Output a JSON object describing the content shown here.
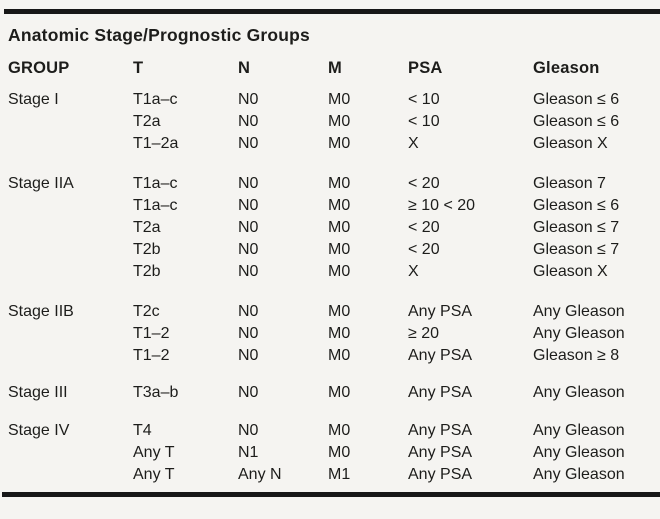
{
  "colors": {
    "background": "#f5f4f1",
    "rule": "#171717",
    "text": "#1d1d1b"
  },
  "table": {
    "title": "Anatomic Stage/Prognostic Groups",
    "headers": [
      "GROUP",
      "T",
      "N",
      "M",
      "PSA",
      "Gleason"
    ],
    "groups": [
      {
        "label": "Stage I",
        "rows": [
          {
            "t": "T1a–c",
            "n": "N0",
            "m": "M0",
            "psa": "< 10",
            "gleason": "Gleason ≤ 6"
          },
          {
            "t": "T2a",
            "n": "N0",
            "m": "M0",
            "psa": "< 10",
            "gleason": "Gleason ≤ 6"
          },
          {
            "t": "T1–2a",
            "n": "N0",
            "m": "M0",
            "psa": "X",
            "gleason": "Gleason X"
          }
        ]
      },
      {
        "label": "Stage IIA",
        "rows": [
          {
            "t": "T1a–c",
            "n": "N0",
            "m": "M0",
            "psa": "< 20",
            "gleason": "Gleason 7"
          },
          {
            "t": "T1a–c",
            "n": "N0",
            "m": "M0",
            "psa": "≥ 10 < 20",
            "gleason": "Gleason ≤ 6"
          },
          {
            "t": "T2a",
            "n": "N0",
            "m": "M0",
            "psa": "< 20",
            "gleason": "Gleason ≤ 7"
          },
          {
            "t": "T2b",
            "n": "N0",
            "m": "M0",
            "psa": "< 20",
            "gleason": "Gleason ≤ 7"
          },
          {
            "t": "T2b",
            "n": "N0",
            "m": "M0",
            "psa": "X",
            "gleason": "Gleason X"
          }
        ]
      },
      {
        "label": "Stage IIB",
        "rows": [
          {
            "t": "T2c",
            "n": "N0",
            "m": "M0",
            "psa": "Any PSA",
            "gleason": "Any Gleason"
          },
          {
            "t": "T1–2",
            "n": "N0",
            "m": "M0",
            "psa": "≥ 20",
            "gleason": "Any Gleason"
          },
          {
            "t": "T1–2",
            "n": "N0",
            "m": "M0",
            "psa": "Any PSA",
            "gleason": "Gleason ≥ 8"
          }
        ]
      },
      {
        "label": "Stage III",
        "rows": [
          {
            "t": "T3a–b",
            "n": "N0",
            "m": "M0",
            "psa": "Any PSA",
            "gleason": "Any Gleason"
          }
        ]
      },
      {
        "label": "Stage IV",
        "rows": [
          {
            "t": "T4",
            "n": "N0",
            "m": "M0",
            "psa": "Any PSA",
            "gleason": "Any Gleason"
          },
          {
            "t": "Any T",
            "n": "N1",
            "m": "M0",
            "psa": "Any PSA",
            "gleason": "Any Gleason"
          },
          {
            "t": "Any T",
            "n": "Any N",
            "m": "M1",
            "psa": "Any PSA",
            "gleason": "Any Gleason"
          }
        ]
      }
    ]
  }
}
